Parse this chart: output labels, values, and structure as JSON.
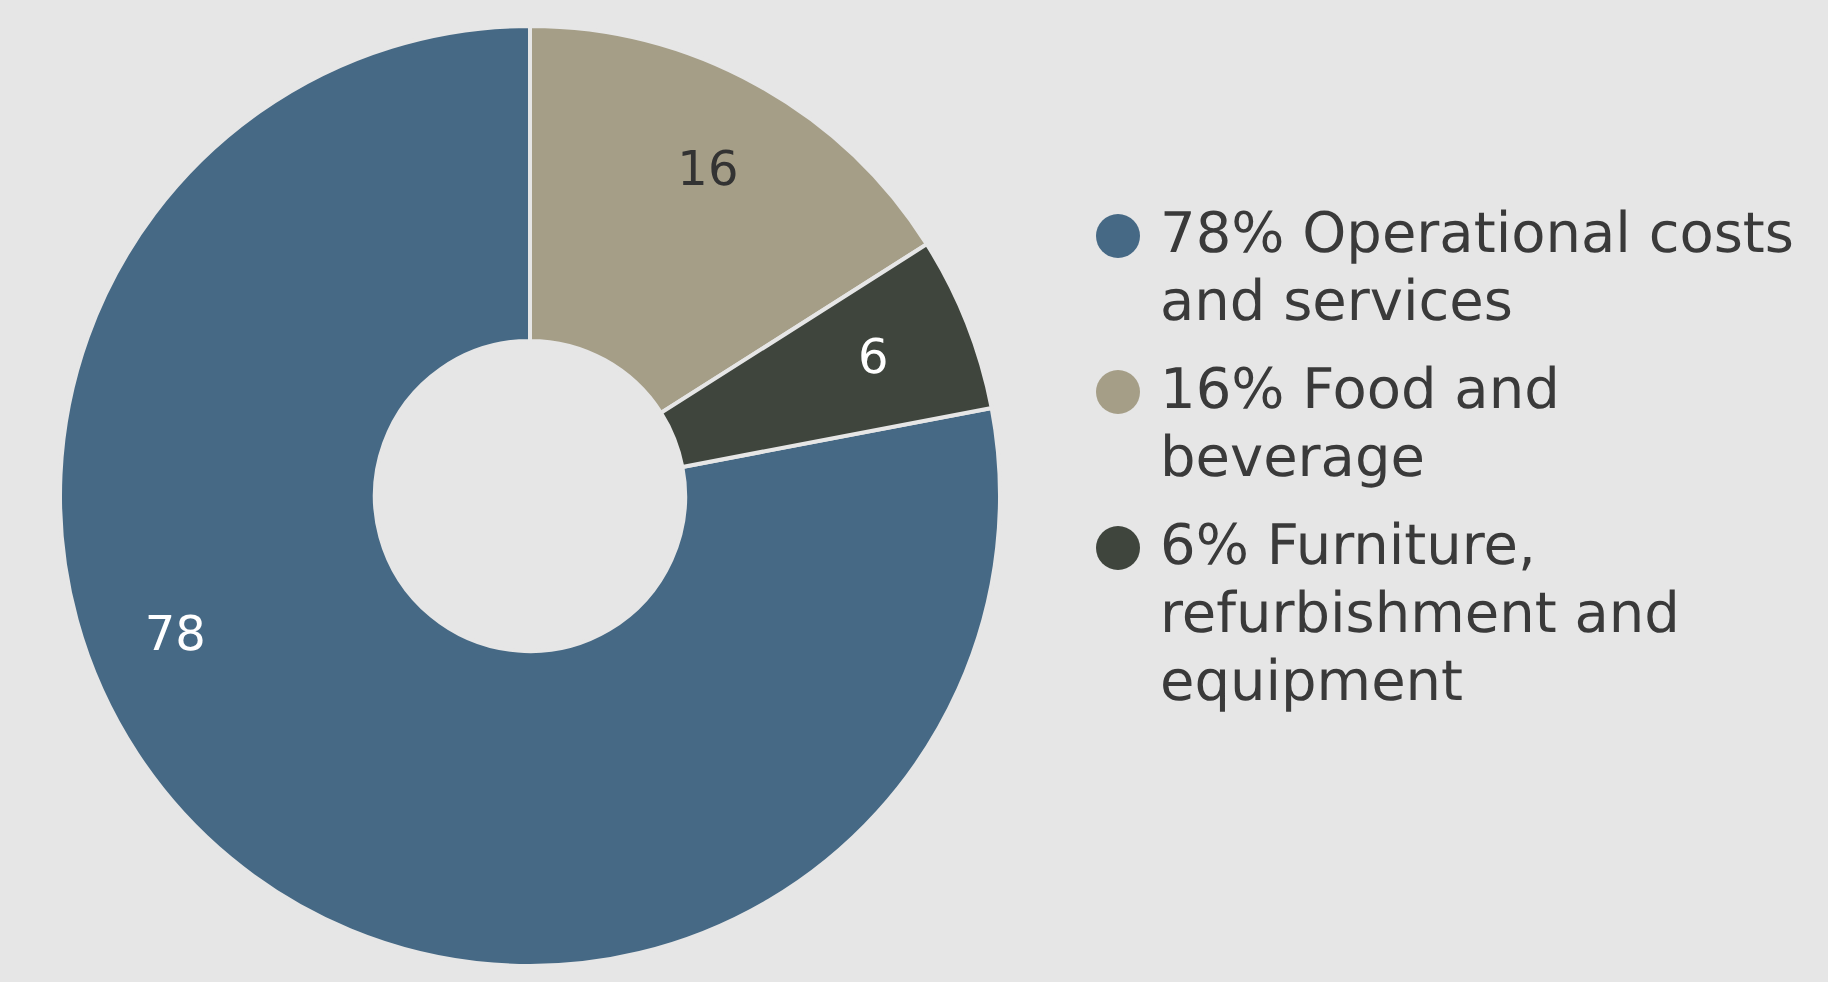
{
  "chart_data": {
    "type": "donut",
    "categories": [
      "78% Operational costs and services",
      "16% Food and beverage",
      "6% Furniture, refurbishment and equipment"
    ],
    "values": [
      78,
      16,
      6
    ],
    "colors": [
      "#466985",
      "#a59e87",
      "#3f453d"
    ],
    "data_labels": true,
    "legend": "right"
  }
}
